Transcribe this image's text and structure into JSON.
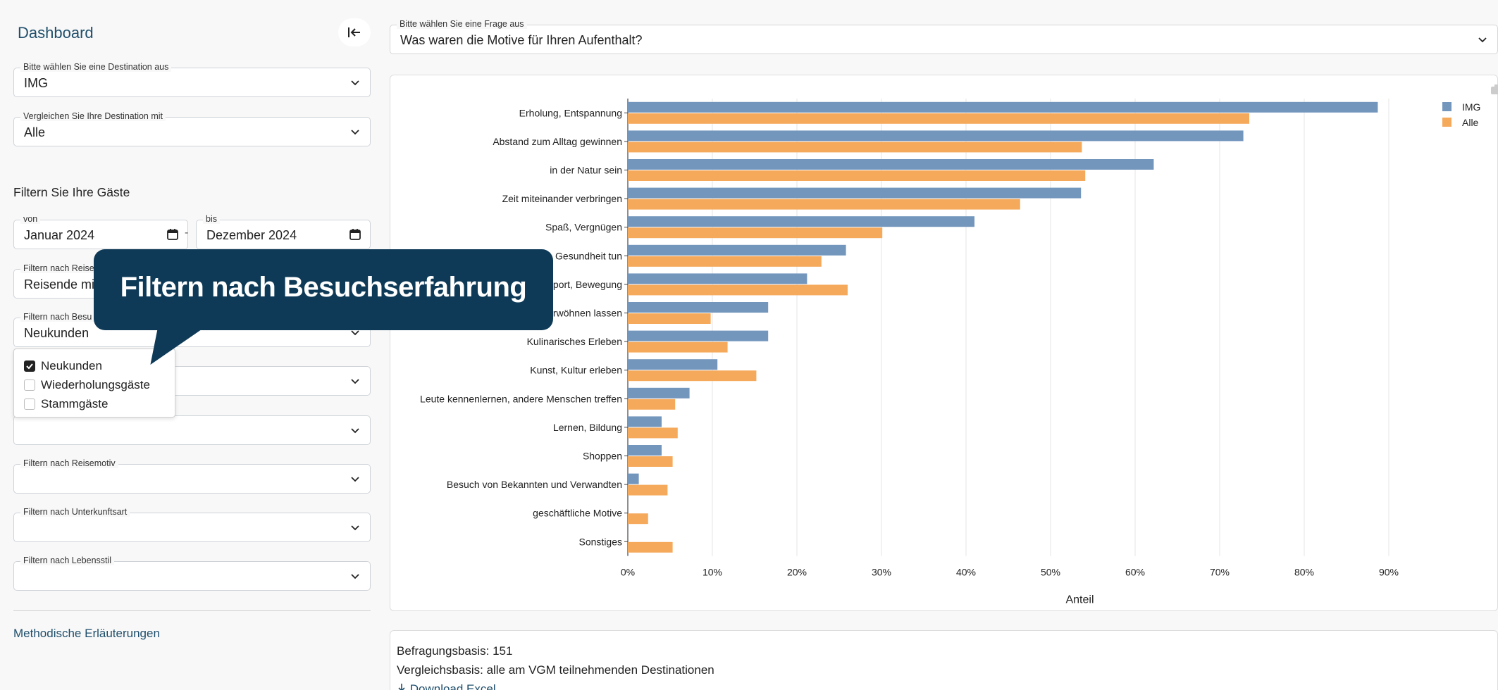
{
  "sidebar": {
    "title": "Dashboard",
    "destination": {
      "label": "Bitte wählen Sie eine Destination aus",
      "value": "IMG"
    },
    "compare": {
      "label": "Vergleichen Sie Ihre Destination mit",
      "value": "Alle"
    },
    "filter_title": "Filtern Sie Ihre Gäste",
    "date_from": {
      "label": "von",
      "value": "Januar 2024"
    },
    "date_sep": "-",
    "date_to": {
      "label": "bis",
      "value": "Dezember 2024"
    },
    "reisegruppe": {
      "label": "Filtern nach Reise",
      "value": "Reisende mit"
    },
    "besuch": {
      "label": "Filtern nach Besu",
      "value": "Neukunden"
    },
    "besuch_options": [
      {
        "label": "Neukunden",
        "checked": true
      },
      {
        "label": "Wiederholungsgäste",
        "checked": false
      },
      {
        "label": "Stammgäste",
        "checked": false
      }
    ],
    "reisemotiv": {
      "label": "Filtern nach Reisemotiv",
      "value": ""
    },
    "unterkunft": {
      "label": "Filtern nach Unterkunftsart",
      "value": ""
    },
    "lebensstil": {
      "label": "Filtern nach Lebensstil",
      "value": ""
    },
    "method_link": "Methodische Erläuterungen"
  },
  "callout": {
    "text": "Filtern nach Besuchserfahrung"
  },
  "question": {
    "label": "Bitte wählen Sie eine Frage aus",
    "value": "Was waren die Motive für Ihren Aufenthalt?"
  },
  "info": {
    "basis": "Befragungsbasis: 151",
    "vergleich": "Vergleichsbasis: alle am VGM teilnehmenden Destinationen",
    "download": "Download Excel"
  },
  "chart_data": {
    "type": "bar",
    "orientation": "horizontal",
    "categories": [
      "Erholung, Entspannung",
      "Abstand zum Alltag gewinnen",
      "in der Natur sein",
      "Zeit miteinander verbringen",
      "Spaß, Vergnügen",
      "Gesundheit tun",
      "Sport, Bewegung",
      "verwöhnen lassen",
      "Kulinarisches Erleben",
      "Kunst, Kultur erleben",
      "Leute kennenlernen, andere Menschen treffen",
      "Lernen, Bildung",
      "Shoppen",
      "Besuch von Bekannten und Verwandten",
      "geschäftliche Motive",
      "Sonstiges"
    ],
    "series": [
      {
        "name": "IMG",
        "color": "#7396bd",
        "values": [
          88.7,
          72.8,
          62.2,
          53.6,
          41.0,
          25.8,
          21.2,
          16.6,
          16.6,
          10.6,
          7.3,
          4.0,
          4.0,
          1.3,
          0,
          0
        ]
      },
      {
        "name": "Alle",
        "color": "#f5a95b",
        "values": [
          73.5,
          53.7,
          54.1,
          46.4,
          30.1,
          22.9,
          26.0,
          9.8,
          11.8,
          15.2,
          5.6,
          5.9,
          5.3,
          4.7,
          2.4,
          5.3
        ]
      }
    ],
    "xlabel": "Anteil",
    "xlim": [
      0,
      100
    ],
    "xticks": [
      "0%",
      "10%",
      "20%",
      "30%",
      "40%",
      "50%",
      "60%",
      "70%",
      "80%",
      "90%"
    ],
    "grid": true,
    "legend": "top-right"
  }
}
